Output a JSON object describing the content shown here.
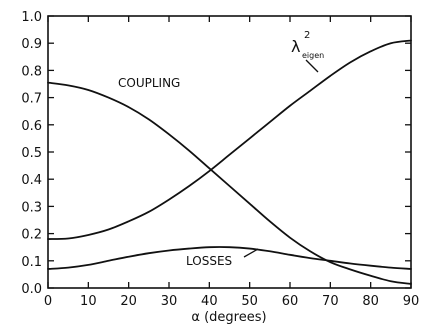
{
  "chart_data": {
    "type": "line",
    "title": "",
    "xlabel": "α (degrees)",
    "ylabel": "",
    "xlim": [
      0,
      90
    ],
    "ylim": [
      0,
      1.0
    ],
    "grid": false,
    "x_ticks": [
      "0",
      "10",
      "20",
      "30",
      "40",
      "50",
      "60",
      "70",
      "80",
      "90"
    ],
    "y_ticks": [
      "0.0",
      "0.1",
      "0.2",
      "0.3",
      "0.4",
      "0.5",
      "0.6",
      "0.7",
      "0.8",
      "0.9",
      "1.0"
    ],
    "x": [
      0,
      5,
      10,
      15,
      20,
      25,
      30,
      35,
      40,
      45,
      50,
      55,
      60,
      65,
      70,
      75,
      80,
      85,
      90
    ],
    "series": [
      {
        "name": "COUPLING",
        "values": [
          0.755,
          0.745,
          0.728,
          0.7,
          0.665,
          0.62,
          0.565,
          0.505,
          0.44,
          0.375,
          0.31,
          0.245,
          0.185,
          0.135,
          0.095,
          0.068,
          0.045,
          0.025,
          0.015
        ]
      },
      {
        "name": "λ²eigen",
        "values": [
          0.18,
          0.182,
          0.195,
          0.215,
          0.245,
          0.28,
          0.325,
          0.375,
          0.43,
          0.49,
          0.55,
          0.61,
          0.67,
          0.725,
          0.78,
          0.83,
          0.87,
          0.9,
          0.91
        ]
      },
      {
        "name": "LOSSES",
        "values": [
          0.07,
          0.075,
          0.085,
          0.1,
          0.115,
          0.128,
          0.138,
          0.145,
          0.15,
          0.15,
          0.145,
          0.135,
          0.122,
          0.11,
          0.1,
          0.09,
          0.082,
          0.075,
          0.07
        ]
      }
    ],
    "annotations": {
      "coupling": "COUPLING",
      "losses": "LOSSES",
      "lambda_symbol": "λ",
      "lambda_sup": "2",
      "lambda_sub": "eigen"
    }
  }
}
